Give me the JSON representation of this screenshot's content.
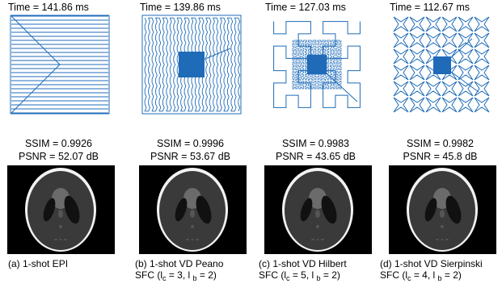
{
  "panels": [
    {
      "time": "Time = 141.86 ms",
      "ssim": "SSIM = 0.9926",
      "psnr": "PSNR = 52.07 dB",
      "caption_line1": "(a) 1-shot EPI",
      "caption_line2_pre": "",
      "c_val": "",
      "b_val": "",
      "trajectory_icon": "epi-trajectory-icon"
    },
    {
      "time": "Time = 139.86 ms",
      "ssim": "SSIM = 0.9996",
      "psnr": "PSNR = 53.67 dB",
      "caption_line1": "(b) 1-shot VD Peano",
      "caption_line2_pre": "SFC (l",
      "c_val": " = 3, l ",
      "b_val": " = 2)",
      "trajectory_icon": "peano-trajectory-icon"
    },
    {
      "time": "Time = 127.03 ms",
      "ssim": "SSIM = 0.9983",
      "psnr": "PSNR = 43.65 dB",
      "caption_line1": "(c) 1-shot VD Hilbert",
      "caption_line2_pre": "SFC (l",
      "c_val": " = 5, l ",
      "b_val": " = 2)",
      "trajectory_icon": "hilbert-trajectory-icon"
    },
    {
      "time": "Time = 112.67 ms",
      "ssim": "SSIM = 0.9982",
      "psnr": "PSNR = 45.8 dB",
      "caption_line1": "(d) 1-shot VD Sierpinski",
      "caption_line2_pre": "SFC (l",
      "c_val": " = 4, l ",
      "b_val": " = 2)",
      "trajectory_icon": "sierpinski-trajectory-icon"
    }
  ],
  "colors": {
    "trajectory": "#1f6bb8",
    "background": "#ffffff",
    "phantom_bg": "#000000"
  },
  "phantom_icon": "shepp-logan-phantom-icon"
}
